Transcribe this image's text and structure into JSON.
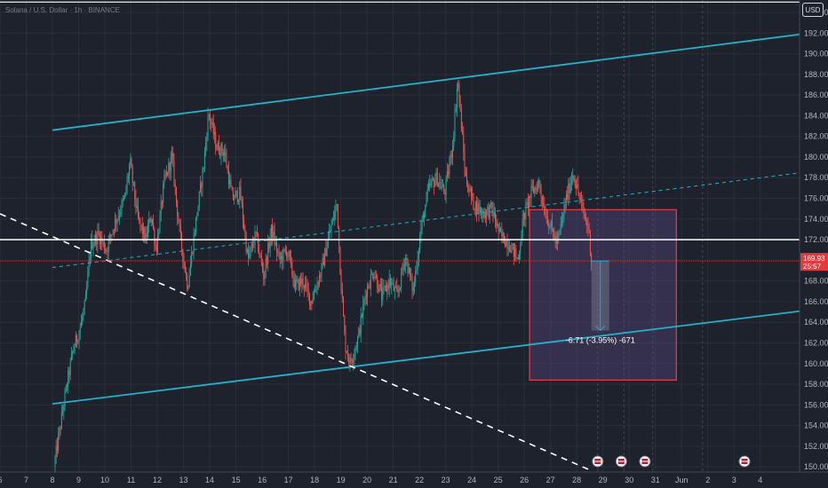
{
  "chart_title": "Solana / U.S. Dollar · 1h · BINANCE",
  "currency_button": "USD",
  "colors": {
    "background": "#1e222d",
    "grid": "#2a2e39",
    "up": "#26a69a",
    "down": "#ef5350",
    "channel": "#22b2c9",
    "trend_dashed": "#ffffff",
    "horizontal": "#ffffff",
    "price_line": "#b83a3d",
    "price_label": "#e23a3f",
    "box_border": "#e0404a",
    "box_fill": "#5e4a8a",
    "measure": "#29a3d6"
  },
  "chart_data": {
    "type": "candlestick",
    "ylim": [
      149.5,
      195.2
    ],
    "x_domain_days": [
      6,
      36.5
    ],
    "y_ticks": [
      150,
      152,
      154,
      156,
      158,
      160,
      162,
      164,
      166,
      168,
      170,
      172,
      174,
      176,
      178,
      180,
      182,
      184,
      186,
      188,
      190,
      192,
      194
    ],
    "x_ticks": [
      {
        "label": "6",
        "day": 6
      },
      {
        "label": "7",
        "day": 7
      },
      {
        "label": "8",
        "day": 8
      },
      {
        "label": "9",
        "day": 9
      },
      {
        "label": "10",
        "day": 10
      },
      {
        "label": "11",
        "day": 11
      },
      {
        "label": "12",
        "day": 12
      },
      {
        "label": "13",
        "day": 13
      },
      {
        "label": "14",
        "day": 14
      },
      {
        "label": "15",
        "day": 15
      },
      {
        "label": "16",
        "day": 16
      },
      {
        "label": "17",
        "day": 17
      },
      {
        "label": "18",
        "day": 18
      },
      {
        "label": "19",
        "day": 19
      },
      {
        "label": "20",
        "day": 20
      },
      {
        "label": "21",
        "day": 21
      },
      {
        "label": "22",
        "day": 22
      },
      {
        "label": "23",
        "day": 23
      },
      {
        "label": "24",
        "day": 24
      },
      {
        "label": "25",
        "day": 25
      },
      {
        "label": "26",
        "day": 26
      },
      {
        "label": "27",
        "day": 27
      },
      {
        "label": "28",
        "day": 28
      },
      {
        "label": "29",
        "day": 29
      },
      {
        "label": "30",
        "day": 30
      },
      {
        "label": "31",
        "day": 31
      },
      {
        "label": "Jun",
        "day": 32
      },
      {
        "label": "2",
        "day": 33
      },
      {
        "label": "3",
        "day": 34
      },
      {
        "label": "4",
        "day": 35
      }
    ],
    "future_grid_days": [
      28.8,
      29.8,
      30.9,
      32.8
    ],
    "price_path": [
      [
        8.1,
        150.0
      ],
      [
        8.5,
        156.5
      ],
      [
        8.8,
        161.0
      ],
      [
        9.1,
        163.5
      ],
      [
        9.3,
        165.8
      ],
      [
        9.5,
        171.5
      ],
      [
        9.8,
        172.5
      ],
      [
        10.1,
        171.0
      ],
      [
        10.4,
        173.5
      ],
      [
        10.8,
        176.0
      ],
      [
        11.0,
        179.5
      ],
      [
        11.3,
        174.0
      ],
      [
        11.6,
        172.0
      ],
      [
        11.8,
        174.5
      ],
      [
        12.0,
        171.0
      ],
      [
        12.3,
        177.5
      ],
      [
        12.6,
        180.0
      ],
      [
        12.9,
        172.5
      ],
      [
        13.2,
        167.5
      ],
      [
        13.5,
        173.5
      ],
      [
        13.8,
        179.0
      ],
      [
        14.0,
        184.3
      ],
      [
        14.3,
        181.0
      ],
      [
        14.6,
        180.5
      ],
      [
        14.9,
        176.0
      ],
      [
        15.2,
        176.5
      ],
      [
        15.5,
        170.0
      ],
      [
        15.8,
        172.5
      ],
      [
        16.1,
        168.5
      ],
      [
        16.4,
        173.0
      ],
      [
        16.7,
        170.0
      ],
      [
        17.0,
        171.0
      ],
      [
        17.3,
        167.5
      ],
      [
        17.6,
        168.0
      ],
      [
        17.9,
        166.0
      ],
      [
        18.3,
        169.0
      ],
      [
        18.6,
        172.5
      ],
      [
        18.9,
        175.5
      ],
      [
        19.0,
        170.0
      ],
      [
        19.2,
        162.0
      ],
      [
        19.4,
        160.0
      ],
      [
        19.7,
        162.5
      ],
      [
        20.0,
        167.0
      ],
      [
        20.3,
        169.0
      ],
      [
        20.6,
        166.5
      ],
      [
        20.9,
        168.0
      ],
      [
        21.2,
        166.5
      ],
      [
        21.5,
        170.5
      ],
      [
        21.8,
        167.0
      ],
      [
        22.1,
        173.0
      ],
      [
        22.4,
        177.0
      ],
      [
        22.7,
        178.0
      ],
      [
        23.0,
        176.5
      ],
      [
        23.3,
        181.0
      ],
      [
        23.5,
        187.5
      ],
      [
        23.8,
        178.0
      ],
      [
        24.1,
        175.5
      ],
      [
        24.5,
        174.5
      ],
      [
        24.8,
        175.0
      ],
      [
        25.1,
        172.5
      ],
      [
        25.5,
        171.5
      ],
      [
        25.8,
        170.0
      ],
      [
        26.0,
        174.0
      ],
      [
        26.3,
        176.5
      ],
      [
        26.6,
        177.5
      ],
      [
        26.8,
        175.0
      ],
      [
        27.0,
        173.5
      ],
      [
        27.3,
        171.5
      ],
      [
        27.6,
        175.5
      ],
      [
        27.9,
        178.5
      ],
      [
        28.1,
        176.5
      ],
      [
        28.3,
        174.5
      ],
      [
        28.5,
        173.0
      ],
      [
        28.6,
        169.93
      ]
    ],
    "channel_upper": {
      "from": [
        8.0,
        182.6
      ],
      "to": [
        36.6,
        191.9
      ]
    },
    "channel_lower": {
      "from": [
        8.0,
        156.1
      ],
      "to": [
        36.6,
        165.1
      ]
    },
    "channel_mid": {
      "from": [
        8.0,
        169.3
      ],
      "to": [
        36.6,
        178.5
      ]
    },
    "dashed_trend": {
      "from": [
        6.0,
        174.5
      ],
      "to": [
        28.5,
        149.7
      ]
    },
    "horizontal_level": 172.0,
    "current_price": 169.93,
    "current_price_label": "169.93",
    "countdown_label": "25:57",
    "forecast_box": {
      "day_from": 26.2,
      "day_to": 31.8,
      "price_top": 174.9,
      "price_bottom": 158.4
    },
    "measure": {
      "day": 28.9,
      "from_price": 169.93,
      "to_price": 163.2,
      "label": "-6.71 (-3.95%) -671"
    },
    "event_markers_days": [
      28.8,
      29.7,
      30.6,
      34.4
    ],
    "top_line_price": 195.0
  }
}
